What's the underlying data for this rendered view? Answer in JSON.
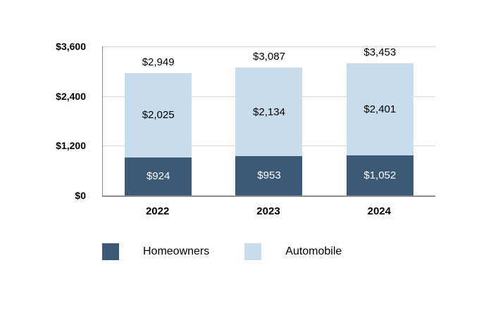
{
  "chart_data": {
    "type": "bar",
    "stacked": true,
    "title": "",
    "categories": [
      "2022",
      "2023",
      "2024"
    ],
    "series": [
      {
        "name": "Homeowners",
        "color": "#3c5a75",
        "label_color": "#ffffff",
        "values": [
          924,
          953,
          1052
        ],
        "labels": [
          "$924",
          "$953",
          "$1,052"
        ]
      },
      {
        "name": "Automobile",
        "color": "#c8dcec",
        "label_color": "#000000",
        "values": [
          2025,
          2134,
          2401
        ],
        "labels": [
          "$2,025",
          "$2,134",
          "$2,401"
        ]
      }
    ],
    "totals": [
      2949,
      3087,
      3453
    ],
    "total_labels": [
      "$2,949",
      "$3,087",
      "$3,453"
    ],
    "y_axis": {
      "max": 3600,
      "ticks": [
        0,
        1200,
        2400,
        3600
      ],
      "tick_labels": [
        "$0",
        "$1,200",
        "$2,400",
        "$3,600"
      ]
    },
    "grid": true,
    "legend_position": "bottom"
  }
}
